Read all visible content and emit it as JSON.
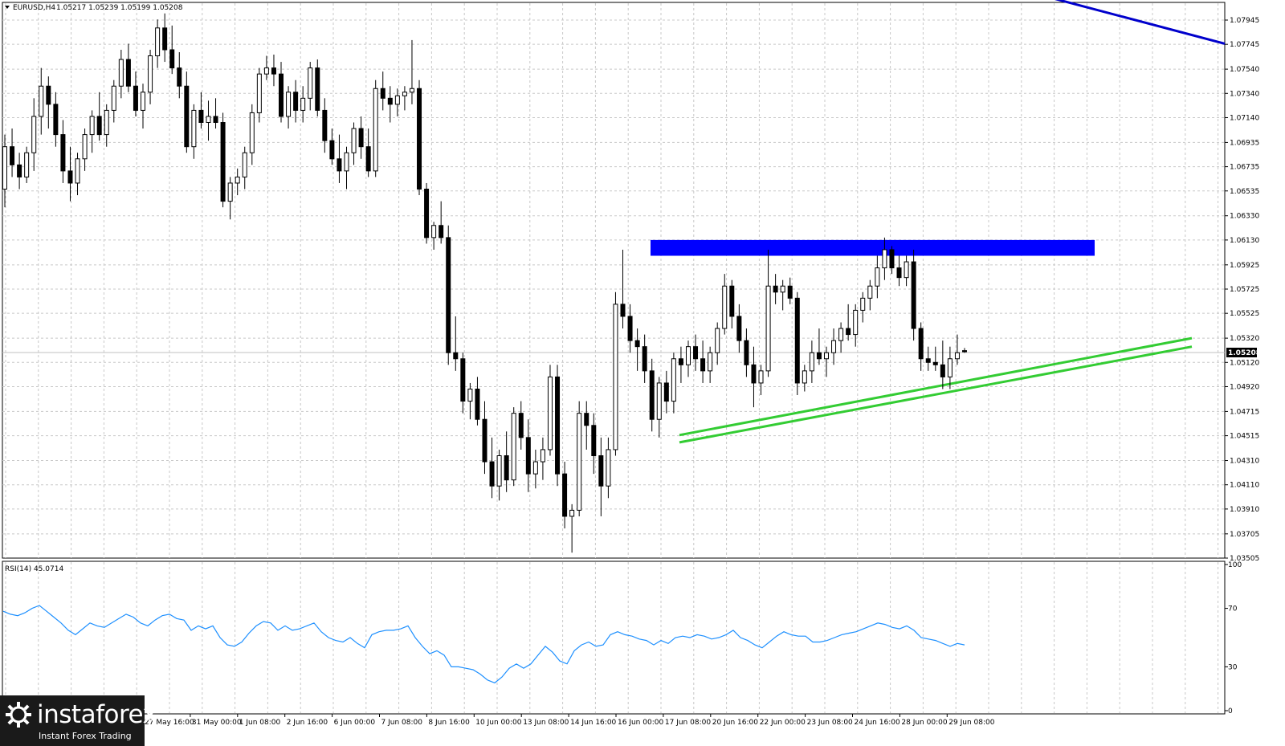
{
  "header": {
    "instrument": "EURUSD,H4",
    "ohlc": "1.05217 1.05239 1.05199 1.05208"
  },
  "rsi_label": "RSI(14) 45.0714",
  "current_price": "1.05208",
  "colors": {
    "resistance_zone": "#0000ff",
    "down_trendline": "#0000cc",
    "support_channel": "#33cc33",
    "rsi_line": "#1e90ff",
    "price_tag": "#000000"
  },
  "logo": {
    "brand": "instaforex",
    "tagline": "Instant Forex Trading"
  },
  "chart_data": [
    {
      "type": "candlestick",
      "name": "EURUSD H4",
      "ylim": [
        1.03505,
        1.08095
      ],
      "y_ticks": [
        "1.07945",
        "1.07745",
        "1.07540",
        "1.07340",
        "1.07140",
        "1.06935",
        "1.06735",
        "1.06535",
        "1.06330",
        "1.06130",
        "1.05925",
        "1.05725",
        "1.05525",
        "1.05320",
        "1.05120",
        "1.04920",
        "1.04715",
        "1.04515",
        "1.04310",
        "1.04110",
        "1.03910",
        "1.03705",
        "1.03505"
      ],
      "x_ticks": [
        "27 May 16:00",
        "31 May 00:00",
        "1 Jun 08:00",
        "2 Jun 16:00",
        "6 Jun 00:00",
        "7 Jun 08:00",
        "8 Jun 16:00",
        "10 Jun 00:00",
        "13 Jun 08:00",
        "14 Jun 16:00",
        "16 Jun 00:00",
        "17 Jun 08:00",
        "20 Jun 16:00",
        "22 Jun 00:00",
        "23 Jun 08:00",
        "24 Jun 16:00",
        "28 Jun 00:00",
        "29 Jun 08:00"
      ],
      "grid": true,
      "candles_ohlc": [
        [
          1.0655,
          1.07,
          1.064,
          1.069
        ],
        [
          1.069,
          1.0705,
          1.0665,
          1.0675
        ],
        [
          1.0675,
          1.0685,
          1.0655,
          1.0665
        ],
        [
          1.0665,
          1.069,
          1.066,
          1.0685
        ],
        [
          1.0685,
          1.073,
          1.067,
          1.0715
        ],
        [
          1.0715,
          1.0755,
          1.07,
          1.074
        ],
        [
          1.074,
          1.0748,
          1.0705,
          1.0725
        ],
        [
          1.0725,
          1.0735,
          1.069,
          1.07
        ],
        [
          1.07,
          1.0712,
          1.066,
          1.067
        ],
        [
          1.067,
          1.069,
          1.0645,
          1.066
        ],
        [
          1.066,
          1.0685,
          1.065,
          1.068
        ],
        [
          1.068,
          1.0705,
          1.067,
          1.07
        ],
        [
          1.07,
          1.072,
          1.0685,
          1.0715
        ],
        [
          1.0715,
          1.0735,
          1.0695,
          1.07
        ],
        [
          1.07,
          1.0725,
          1.069,
          1.072
        ],
        [
          1.072,
          1.0745,
          1.071,
          1.074
        ],
        [
          1.074,
          1.077,
          1.073,
          1.0762
        ],
        [
          1.0762,
          1.0775,
          1.0735,
          1.074
        ],
        [
          1.074,
          1.0752,
          1.0715,
          1.072
        ],
        [
          1.072,
          1.0742,
          1.0705,
          1.0735
        ],
        [
          1.0735,
          1.077,
          1.0725,
          1.0765
        ],
        [
          1.0765,
          1.0795,
          1.0755,
          1.0788
        ],
        [
          1.0788,
          1.08,
          1.076,
          1.077
        ],
        [
          1.077,
          1.079,
          1.075,
          1.0755
        ],
        [
          1.0755,
          1.0768,
          1.073,
          1.074
        ],
        [
          1.074,
          1.0752,
          1.0685,
          1.069
        ],
        [
          1.069,
          1.0725,
          1.068,
          1.072
        ],
        [
          1.072,
          1.0735,
          1.0705,
          1.071
        ],
        [
          1.071,
          1.0728,
          1.0695,
          1.0715
        ],
        [
          1.0715,
          1.073,
          1.0705,
          1.071
        ],
        [
          1.071,
          1.0718,
          1.064,
          1.0645
        ],
        [
          1.0645,
          1.0665,
          1.063,
          1.066
        ],
        [
          1.066,
          1.0672,
          1.065,
          1.0665
        ],
        [
          1.0665,
          1.069,
          1.0655,
          1.0685
        ],
        [
          1.0685,
          1.0725,
          1.0675,
          1.0718
        ],
        [
          1.0718,
          1.0755,
          1.071,
          1.075
        ],
        [
          1.075,
          1.0765,
          1.0745,
          1.0755
        ],
        [
          1.0755,
          1.0766,
          1.074,
          1.075
        ],
        [
          1.075,
          1.076,
          1.071,
          1.0715
        ],
        [
          1.0715,
          1.074,
          1.0705,
          1.0735
        ],
        [
          1.0735,
          1.0745,
          1.071,
          1.072
        ],
        [
          1.072,
          1.074,
          1.071,
          1.073
        ],
        [
          1.073,
          1.076,
          1.072,
          1.0755
        ],
        [
          1.0755,
          1.0762,
          1.0715,
          1.072
        ],
        [
          1.072,
          1.073,
          1.0685,
          1.0695
        ],
        [
          1.0695,
          1.0705,
          1.0675,
          1.068
        ],
        [
          1.068,
          1.07,
          1.066,
          1.067
        ],
        [
          1.067,
          1.069,
          1.0655,
          1.0685
        ],
        [
          1.0685,
          1.071,
          1.0675,
          1.0705
        ],
        [
          1.0705,
          1.0715,
          1.068,
          1.069
        ],
        [
          1.069,
          1.0705,
          1.0665,
          1.067
        ],
        [
          1.067,
          1.0745,
          1.0665,
          1.0738
        ],
        [
          1.0738,
          1.0752,
          1.072,
          1.073
        ],
        [
          1.073,
          1.074,
          1.071,
          1.0725
        ],
        [
          1.0725,
          1.0738,
          1.0715,
          1.0732
        ],
        [
          1.0732,
          1.074,
          1.072,
          1.0735
        ],
        [
          1.0735,
          1.0778,
          1.0725,
          1.0738
        ],
        [
          1.0738,
          1.0745,
          1.065,
          1.0655
        ],
        [
          1.0655,
          1.066,
          1.061,
          1.0615
        ],
        [
          1.0615,
          1.0628,
          1.0605,
          1.0625
        ],
        [
          1.0625,
          1.0645,
          1.061,
          1.0615
        ],
        [
          1.0615,
          1.0625,
          1.051,
          1.052
        ],
        [
          1.052,
          1.055,
          1.0505,
          1.0515
        ],
        [
          1.0515,
          1.052,
          1.047,
          1.048
        ],
        [
          1.048,
          1.0495,
          1.0465,
          1.049
        ],
        [
          1.049,
          1.05,
          1.046,
          1.0465
        ],
        [
          1.0465,
          1.048,
          1.042,
          1.043
        ],
        [
          1.043,
          1.045,
          1.04,
          1.041
        ],
        [
          1.041,
          1.044,
          1.0398,
          1.0435
        ],
        [
          1.0435,
          1.0455,
          1.0405,
          1.0415
        ],
        [
          1.0415,
          1.0475,
          1.041,
          1.047
        ],
        [
          1.047,
          1.048,
          1.044,
          1.045
        ],
        [
          1.045,
          1.0465,
          1.0405,
          1.042
        ],
        [
          1.042,
          1.044,
          1.0408,
          1.043
        ],
        [
          1.043,
          1.045,
          1.0415,
          1.044
        ],
        [
          1.044,
          1.051,
          1.0435,
          1.05
        ],
        [
          1.05,
          1.051,
          1.041,
          1.042
        ],
        [
          1.042,
          1.043,
          1.0375,
          1.0385
        ],
        [
          1.0385,
          1.0395,
          1.0355,
          1.039
        ],
        [
          1.039,
          1.048,
          1.0385,
          1.047
        ],
        [
          1.047,
          1.048,
          1.044,
          1.046
        ],
        [
          1.046,
          1.047,
          1.042,
          1.0435
        ],
        [
          1.0435,
          1.045,
          1.0385,
          1.041
        ],
        [
          1.041,
          1.045,
          1.04,
          1.044
        ],
        [
          1.044,
          1.057,
          1.0435,
          1.056
        ],
        [
          1.056,
          1.0605,
          1.054,
          1.055
        ],
        [
          1.055,
          1.056,
          1.052,
          1.053
        ],
        [
          1.053,
          1.054,
          1.0505,
          1.0525
        ],
        [
          1.0525,
          1.0535,
          1.0495,
          1.0505
        ],
        [
          1.0505,
          1.0515,
          1.0455,
          1.0465
        ],
        [
          1.0465,
          1.05,
          1.045,
          1.0495
        ],
        [
          1.0495,
          1.0505,
          1.047,
          1.048
        ],
        [
          1.048,
          1.052,
          1.047,
          1.0515
        ],
        [
          1.0515,
          1.0525,
          1.0495,
          1.051
        ],
        [
          1.051,
          1.053,
          1.05,
          1.0525
        ],
        [
          1.0525,
          1.0535,
          1.0505,
          1.0515
        ],
        [
          1.0515,
          1.053,
          1.0495,
          1.0505
        ],
        [
          1.0505,
          1.0525,
          1.0495,
          1.052
        ],
        [
          1.052,
          1.0545,
          1.051,
          1.054
        ],
        [
          1.054,
          1.0585,
          1.0535,
          1.0575
        ],
        [
          1.0575,
          1.058,
          1.054,
          1.055
        ],
        [
          1.055,
          1.056,
          1.052,
          1.053
        ],
        [
          1.053,
          1.054,
          1.05,
          1.051
        ],
        [
          1.051,
          1.0525,
          1.0475,
          1.0495
        ],
        [
          1.0495,
          1.051,
          1.0485,
          1.0505
        ],
        [
          1.0505,
          1.0605,
          1.05,
          1.0575
        ],
        [
          1.0575,
          1.0585,
          1.056,
          1.057
        ],
        [
          1.057,
          1.058,
          1.0555,
          1.0575
        ],
        [
          1.0575,
          1.0582,
          1.056,
          1.0565
        ],
        [
          1.0565,
          1.057,
          1.0485,
          1.0495
        ],
        [
          1.0495,
          1.051,
          1.0488,
          1.0505
        ],
        [
          1.0505,
          1.053,
          1.0495,
          1.052
        ],
        [
          1.052,
          1.054,
          1.051,
          1.0515
        ],
        [
          1.0515,
          1.0525,
          1.05,
          1.052
        ],
        [
          1.052,
          1.054,
          1.051,
          1.053
        ],
        [
          1.053,
          1.0545,
          1.052,
          1.054
        ],
        [
          1.054,
          1.056,
          1.053,
          1.0535
        ],
        [
          1.0535,
          1.056,
          1.0525,
          1.0555
        ],
        [
          1.0555,
          1.057,
          1.0545,
          1.0565
        ],
        [
          1.0565,
          1.058,
          1.0555,
          1.0575
        ],
        [
          1.0575,
          1.06,
          1.0565,
          1.059
        ],
        [
          1.059,
          1.0615,
          1.058,
          1.0605
        ],
        [
          1.0605,
          1.0608,
          1.0585,
          1.059
        ],
        [
          1.059,
          1.06,
          1.0575,
          1.0582
        ],
        [
          1.0582,
          1.06,
          1.0575,
          1.0595
        ],
        [
          1.0595,
          1.0605,
          1.053,
          1.054
        ],
        [
          1.054,
          1.0545,
          1.0505,
          1.0515
        ],
        [
          1.0515,
          1.0525,
          1.0505,
          1.0512
        ],
        [
          1.0512,
          1.0525,
          1.0505,
          1.051
        ],
        [
          1.051,
          1.053,
          1.049,
          1.05
        ],
        [
          1.05,
          1.0525,
          1.049,
          1.0515
        ],
        [
          1.0515,
          1.0535,
          1.051,
          1.052
        ],
        [
          1.05217,
          1.05239,
          1.05199,
          1.05208
        ]
      ],
      "annotations": [
        {
          "kind": "resistance_zone",
          "from_price": 1.06,
          "to_price": 1.0613
        },
        {
          "kind": "down_trendline",
          "from_price": 1.082,
          "to_price": 1.0775
        },
        {
          "kind": "support_channel_lower",
          "from_price": 1.0446,
          "to_price": 1.0525
        },
        {
          "kind": "support_channel_upper",
          "from_price": 1.0452,
          "to_price": 1.0532
        }
      ]
    },
    {
      "type": "line",
      "name": "RSI(14) 45.0714",
      "ylim": [
        0,
        100
      ],
      "y_ticks": [
        "100",
        "70",
        "30",
        "0"
      ],
      "values": [
        68,
        66,
        65,
        67,
        70,
        72,
        68,
        64,
        60,
        55,
        52,
        56,
        60,
        58,
        57,
        60,
        63,
        66,
        64,
        60,
        58,
        62,
        65,
        66,
        63,
        62,
        55,
        58,
        56,
        58,
        50,
        45,
        44,
        47,
        53,
        58,
        61,
        60,
        55,
        58,
        55,
        56,
        58,
        60,
        54,
        50,
        48,
        47,
        50,
        46,
        43,
        52,
        54,
        55,
        55,
        56,
        58,
        50,
        44,
        39,
        41,
        38,
        30,
        30,
        29,
        28,
        25,
        21,
        19,
        23,
        29,
        32,
        29,
        32,
        38,
        44,
        40,
        34,
        32,
        41,
        45,
        47,
        44,
        45,
        52,
        54,
        52,
        51,
        49,
        48,
        45,
        48,
        46,
        50,
        51,
        50,
        52,
        51,
        49,
        50,
        52,
        55,
        50,
        48,
        45,
        43,
        47,
        51,
        54,
        52,
        51,
        51,
        47,
        47,
        48,
        50,
        52,
        53,
        54,
        56,
        58,
        60,
        59,
        57,
        56,
        58,
        55,
        50,
        49,
        48,
        46,
        44,
        46,
        45
      ]
    }
  ]
}
